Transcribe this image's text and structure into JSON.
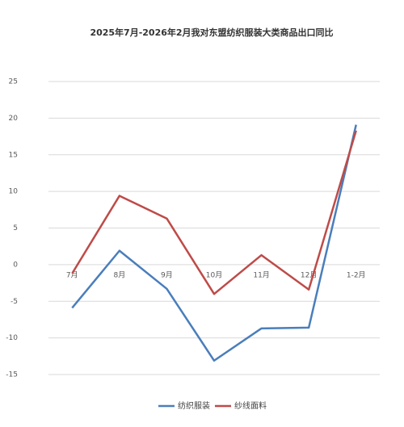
{
  "chart_data": {
    "type": "line",
    "title": "2025年7月-2026年2月我对东盟纺织服装大类商品出口同比",
    "categories": [
      "7月",
      "8月",
      "9月",
      "10月",
      "11月",
      "12月",
      "1-2月"
    ],
    "series": [
      {
        "name": "纺织服装",
        "color": "#4a7ebb",
        "values": [
          -5.9,
          1.9,
          -3.3,
          -13.1,
          -8.7,
          -8.6,
          19.1
        ]
      },
      {
        "name": "纱线面料",
        "color": "#be4b48",
        "values": [
          -1.2,
          9.4,
          6.3,
          -4.0,
          1.3,
          -3.4,
          18.3
        ]
      }
    ],
    "ylim": [
      -15,
      25
    ],
    "yticks": [
      -15,
      -10,
      -5,
      0,
      5,
      10,
      15,
      20,
      25
    ],
    "grid": true
  }
}
